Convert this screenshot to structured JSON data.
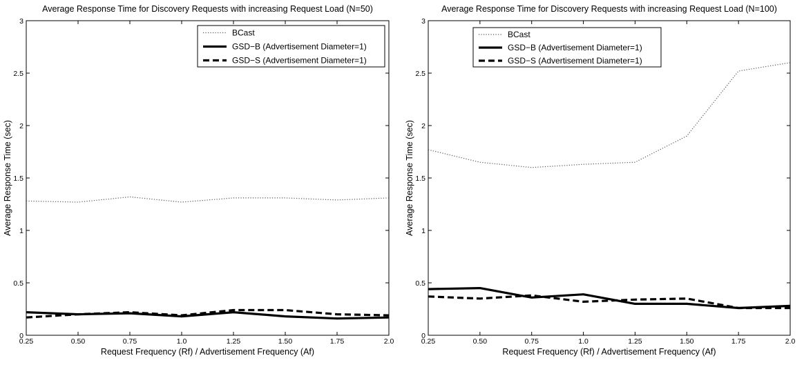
{
  "chart_data": [
    {
      "type": "line",
      "title": "Average Response Time for Discovery Requests with increasing Request Load (N=50)",
      "xlabel": "Request Frequency (Rf) / Advertisement Frequency (Af)",
      "ylabel": "Average Response Time (sec)",
      "xlim": [
        0.25,
        2.0
      ],
      "ylim": [
        0,
        3
      ],
      "x_ticks": [
        "0.25",
        "0.50",
        "0.75",
        "1.0",
        "1.25",
        "1.50",
        "1.75",
        "2.0"
      ],
      "y_ticks": [
        "0",
        "0.5",
        "1",
        "1.5",
        "2",
        "2.5",
        "3"
      ],
      "grid": false,
      "legend_position": "top-right",
      "x": [
        0.25,
        0.5,
        0.75,
        1.0,
        1.25,
        1.5,
        1.75,
        2.0
      ],
      "series": [
        {
          "name": "BCast",
          "style": "dotted",
          "values": [
            1.28,
            1.27,
            1.32,
            1.27,
            1.31,
            1.31,
            1.29,
            1.31
          ]
        },
        {
          "name": "GSD−B (Advertisement Diameter=1)",
          "style": "solid",
          "values": [
            0.22,
            0.2,
            0.21,
            0.18,
            0.22,
            0.18,
            0.16,
            0.17
          ]
        },
        {
          "name": "GSD−S (Advertisement Diameter=1)",
          "style": "dashed",
          "values": [
            0.17,
            0.2,
            0.22,
            0.19,
            0.24,
            0.24,
            0.2,
            0.19
          ]
        }
      ]
    },
    {
      "type": "line",
      "title": "Average Response Time for Discovery Requests with increasing Request Load (N=100)",
      "xlabel": "Request Frequency (Rf) / Advertisement Frequency (Af)",
      "ylabel": "Average Response Time (sec)",
      "xlim": [
        0.25,
        2.0
      ],
      "ylim": [
        0,
        3
      ],
      "x_ticks": [
        "0.25",
        "0.50",
        "0.75",
        "1.0",
        "1.25",
        "1.50",
        "1.75",
        "2.0"
      ],
      "y_ticks": [
        "0",
        "0.5",
        "1",
        "1.5",
        "2",
        "2.5",
        "3"
      ],
      "grid": false,
      "legend_position": "top-left",
      "x": [
        0.25,
        0.5,
        0.75,
        1.0,
        1.25,
        1.5,
        1.75,
        2.0
      ],
      "series": [
        {
          "name": "BCast",
          "style": "dotted",
          "values": [
            1.77,
            1.65,
            1.6,
            1.63,
            1.65,
            1.9,
            2.52,
            2.6
          ]
        },
        {
          "name": "GSD−B (Advertisement Diameter=1)",
          "style": "solid",
          "values": [
            0.44,
            0.45,
            0.36,
            0.39,
            0.3,
            0.3,
            0.26,
            0.28
          ]
        },
        {
          "name": "GSD−S (Advertisement Diameter=1)",
          "style": "dashed",
          "values": [
            0.37,
            0.35,
            0.38,
            0.32,
            0.34,
            0.35,
            0.26,
            0.26
          ]
        }
      ]
    }
  ]
}
